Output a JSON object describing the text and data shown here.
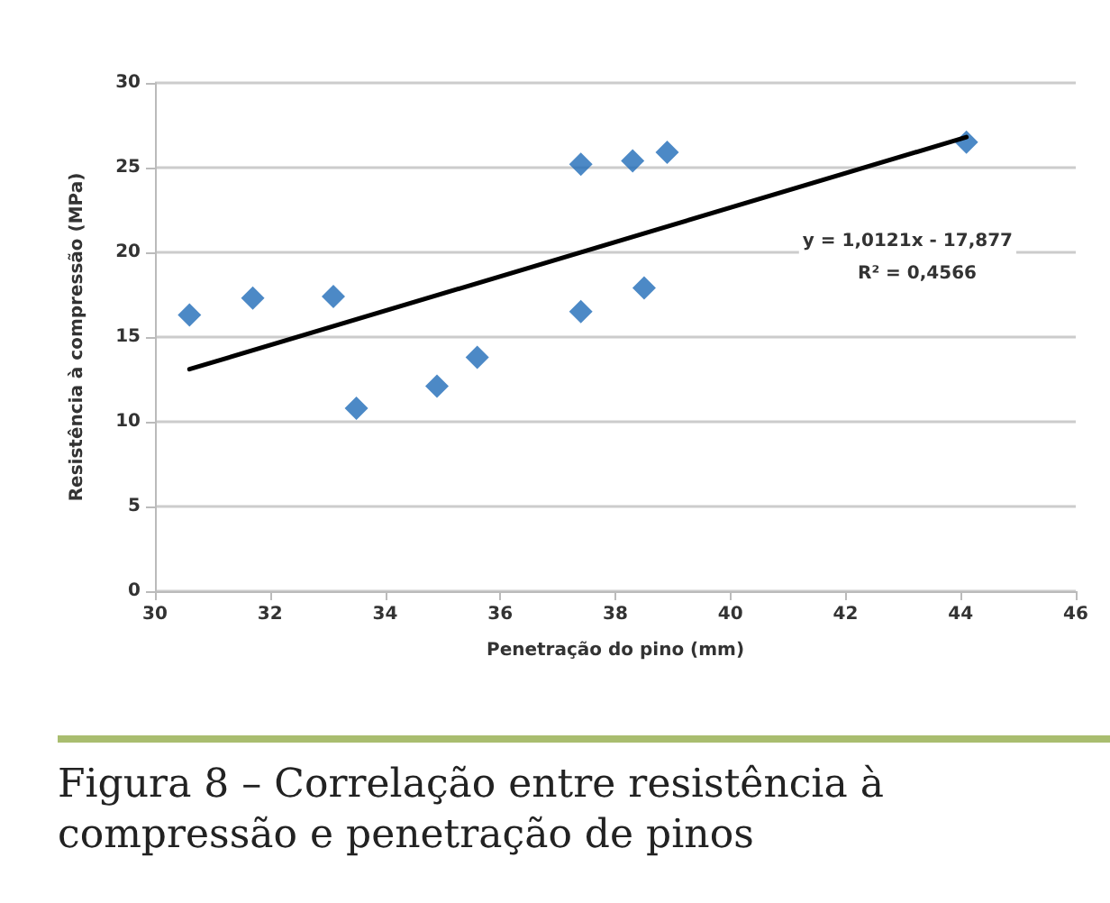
{
  "chart_data": {
    "type": "scatter",
    "xlabel": "Penetração do pino (mm)",
    "ylabel": "Resistência à compressão (MPa)",
    "series": [
      {
        "color": "#1f6bb8",
        "marker": "diamond",
        "x": [
          30.6,
          31.7,
          33.1,
          33.5,
          34.9,
          35.6,
          37.4,
          37.4,
          38.3,
          38.5,
          38.9,
          44.1
        ],
        "values": [
          16.3,
          17.3,
          17.4,
          10.8,
          12.1,
          13.8,
          25.2,
          16.5,
          25.4,
          17.9,
          25.9,
          26.5
        ]
      },
      {
        "type": "line",
        "color": "#000000",
        "marker": "none",
        "line_style": "solid",
        "x": [
          30.6,
          44.1
        ],
        "values": [
          13.1,
          26.8
        ]
      }
    ],
    "xlim": [
      30,
      46
    ],
    "xticks": [
      30,
      32,
      34,
      36,
      38,
      40,
      42,
      44,
      46
    ],
    "ylim": [
      0,
      30
    ],
    "yticks": [
      0,
      5,
      10,
      15,
      20,
      25,
      30
    ],
    "grid": "y",
    "annotations": [
      "y = 1,0121x - 17,877",
      "R² = 0,4566",
      "Figura 8 – Correlação entre resistência à compressão e penetração de pinos"
    ]
  }
}
